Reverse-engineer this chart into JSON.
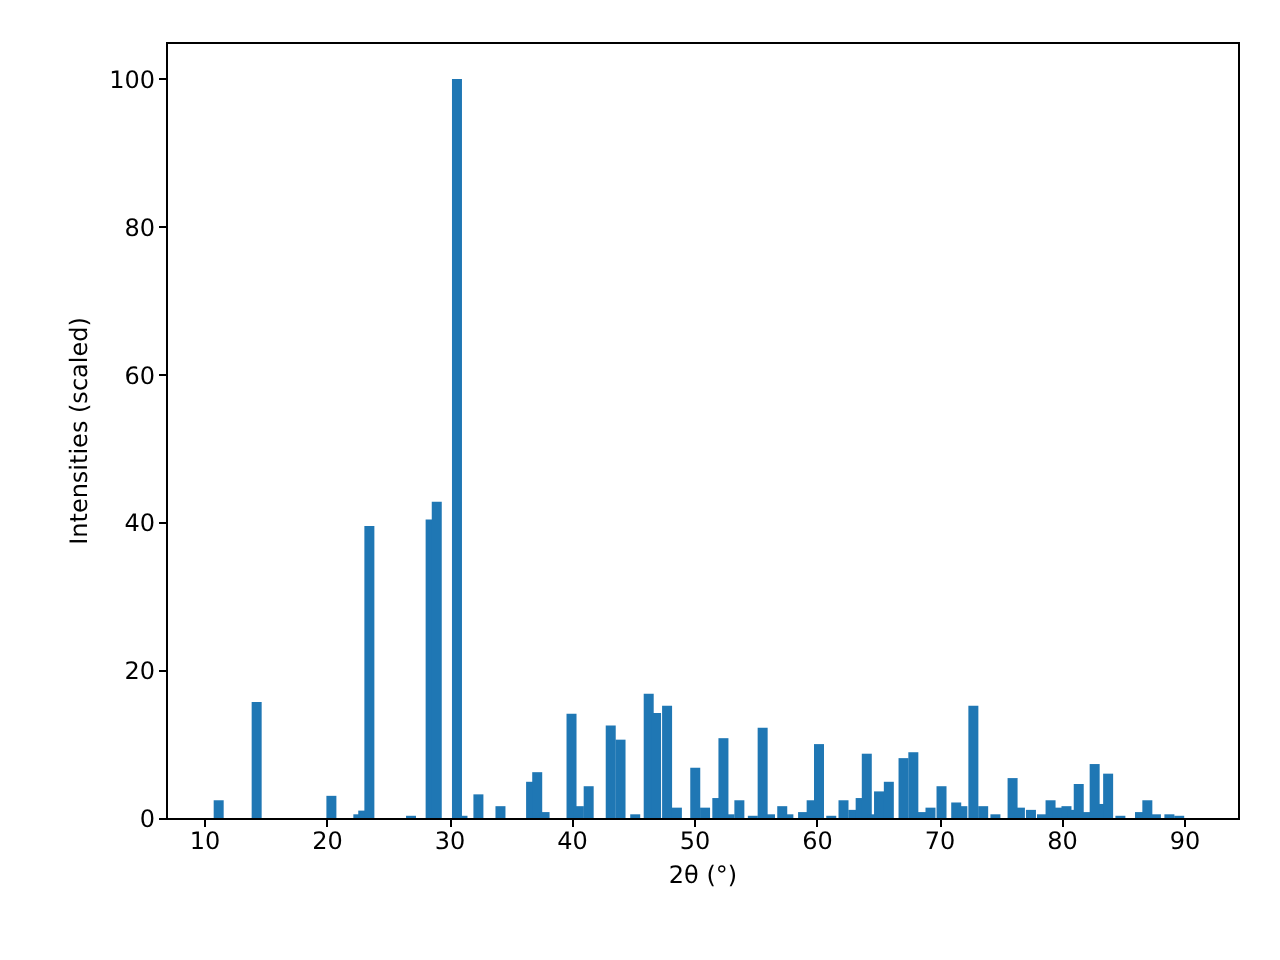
{
  "chart_data": {
    "type": "bar",
    "xlabel": "2θ (°)",
    "ylabel": "Intensities (scaled)",
    "x": [
      11.2,
      14.3,
      20.4,
      22.6,
      23.0,
      23.5,
      26.9,
      28.5,
      29.0,
      30.65,
      31.1,
      32.4,
      34.2,
      36.7,
      37.2,
      37.8,
      40.0,
      40.6,
      41.4,
      43.2,
      44.0,
      45.2,
      46.3,
      46.9,
      47.8,
      48.6,
      50.1,
      50.9,
      51.9,
      52.4,
      52.9,
      53.7,
      54.8,
      55.6,
      56.2,
      57.2,
      57.7,
      58.9,
      59.6,
      60.2,
      61.2,
      62.2,
      63.0,
      63.6,
      64.1,
      64.6,
      65.1,
      65.9,
      67.1,
      67.9,
      68.6,
      69.3,
      70.2,
      71.4,
      71.9,
      72.8,
      73.6,
      74.6,
      76.0,
      76.6,
      77.5,
      78.4,
      79.1,
      79.7,
      80.4,
      80.9,
      81.4,
      82.1,
      82.7,
      83.3,
      83.8,
      84.8,
      86.4,
      87.0,
      87.7,
      88.8,
      89.6
    ],
    "values": [
      2.4,
      15.7,
      3.0,
      0.5,
      1.0,
      39.5,
      0.3,
      40.4,
      42.8,
      100,
      0.3,
      3.2,
      1.6,
      4.9,
      6.2,
      0.8,
      14.1,
      1.6,
      4.3,
      12.5,
      10.6,
      0.5,
      16.8,
      14.2,
      15.2,
      1.4,
      6.8,
      1.4,
      2.7,
      10.8,
      0.5,
      2.4,
      0.3,
      12.2,
      0.5,
      1.6,
      0.5,
      0.8,
      2.4,
      10.0,
      0.3,
      2.4,
      1.1,
      2.7,
      8.7,
      0.5,
      3.6,
      4.9,
      8.1,
      8.9,
      0.8,
      1.4,
      4.3,
      2.1,
      1.6,
      15.2,
      1.6,
      0.5,
      5.4,
      1.4,
      1.1,
      0.5,
      2.4,
      1.4,
      1.6,
      1.1,
      4.6,
      0.8,
      7.3,
      1.9,
      6.0,
      0.3,
      0.8,
      2.4,
      0.5,
      0.5,
      0.3
    ],
    "color": "#1f77b4",
    "xlim": [
      6.9,
      94.4
    ],
    "xticks": [
      10,
      20,
      30,
      40,
      50,
      60,
      70,
      80,
      90
    ],
    "ylim": [
      0,
      105
    ],
    "yticks": [
      0,
      20,
      40,
      60,
      80,
      100
    ],
    "grid": false,
    "legend": false
  }
}
